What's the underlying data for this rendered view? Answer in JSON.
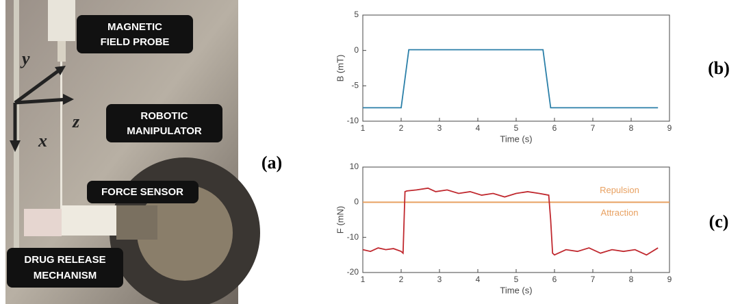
{
  "photo": {
    "labels": [
      [
        "MAGNETIC",
        "FIELD PROBE"
      ],
      [
        "ROBOTIC",
        "MANIPULATOR"
      ],
      [
        "FORCE SENSOR"
      ],
      [
        "DRUG RELEASE",
        "MECHANISM"
      ]
    ],
    "axis_letters": [
      "y",
      "x",
      "z"
    ]
  },
  "panel_labels": [
    "(a)",
    "(b)",
    "(c)"
  ],
  "chart_data": [
    {
      "type": "line",
      "xlabel": "Time (s)",
      "ylabel": "B  (mT)",
      "xlim": [
        1,
        9
      ],
      "xticks": [
        1,
        2,
        3,
        4,
        5,
        6,
        7,
        8,
        9
      ],
      "ylim": [
        -10,
        5
      ],
      "yticks": [
        -10,
        -5,
        0,
        5
      ],
      "series": [
        {
          "color": "#2a7fa8",
          "x": [
            1,
            2,
            2.2,
            5.7,
            5.9,
            8.7
          ],
          "values": [
            -8.1,
            -8.1,
            0.1,
            0.1,
            -8.1,
            -8.1
          ]
        }
      ]
    },
    {
      "type": "line",
      "xlabel": "Time (s)",
      "ylabel": "F  (mN)",
      "xlim": [
        1,
        9
      ],
      "xticks": [
        1,
        2,
        3,
        4,
        5,
        6,
        7,
        8,
        9
      ],
      "ylim": [
        -20,
        10
      ],
      "yticks": [
        -20,
        -10,
        0,
        10
      ],
      "reference_line": {
        "value": 0,
        "color": "#e8a060",
        "label_above": "Repulsion",
        "label_below": "Attraction"
      },
      "series": [
        {
          "color": "#c0282e",
          "x": [
            1.0,
            1.2,
            1.4,
            1.6,
            1.8,
            2.0,
            2.05,
            2.1,
            2.15,
            2.4,
            2.7,
            2.9,
            3.2,
            3.5,
            3.8,
            4.1,
            4.4,
            4.7,
            5.0,
            5.3,
            5.6,
            5.85,
            5.9,
            5.95,
            6.0,
            6.3,
            6.6,
            6.9,
            7.2,
            7.5,
            7.8,
            8.1,
            8.4,
            8.7
          ],
          "values": [
            -13.5,
            -14,
            -13,
            -13.5,
            -13.2,
            -14,
            -14.5,
            3,
            3.2,
            3.5,
            4,
            3,
            3.5,
            2.5,
            3,
            2,
            2.5,
            1.5,
            2.5,
            3,
            2.5,
            2,
            -5,
            -14.5,
            -15,
            -13.5,
            -14,
            -13,
            -14.5,
            -13.5,
            -14,
            -13.5,
            -15,
            -13
          ]
        }
      ]
    }
  ]
}
